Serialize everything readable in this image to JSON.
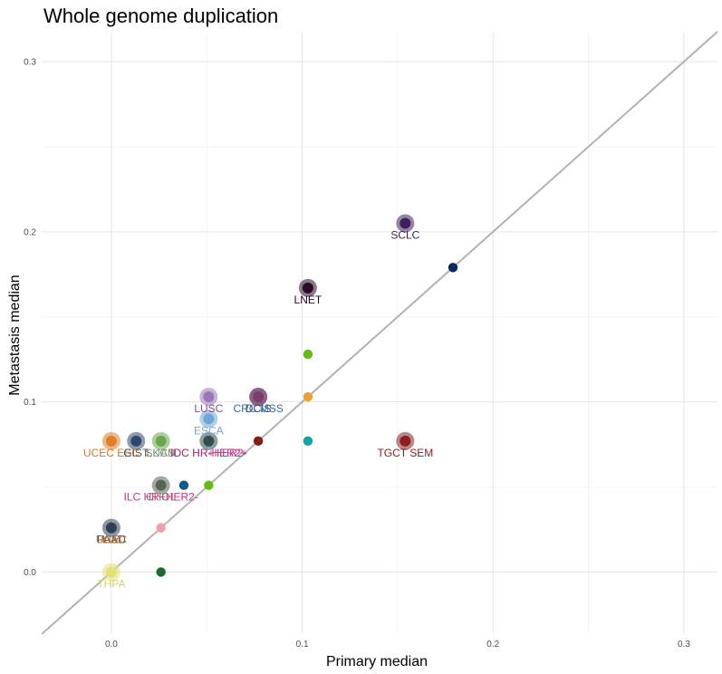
{
  "chart_data": {
    "type": "scatter",
    "title": "Whole genome duplication",
    "xlabel": "Primary median",
    "ylabel": "Metastasis median",
    "xlim": [
      -0.0365,
      0.3176
    ],
    "ylim": [
      -0.0365,
      0.3176
    ],
    "xticks": [
      0.0,
      0.1,
      0.2,
      0.3
    ],
    "yticks": [
      0.0,
      0.1,
      0.2,
      0.3
    ],
    "xtick_labels": [
      "0.0",
      "0.1",
      "0.2",
      "0.3"
    ],
    "ytick_labels": [
      "0.0",
      "0.1",
      "0.2",
      "0.3"
    ],
    "reference_line": "y = x",
    "grid": true,
    "legend": "none",
    "points": [
      {
        "x": 0.154,
        "y": 0.205,
        "color": "#3d1f5c",
        "highlight": true,
        "label": "SCLC",
        "label_color": "#3d1f5c"
      },
      {
        "x": 0.179,
        "y": 0.179,
        "color": "#0a2a5c",
        "highlight": false,
        "label": ""
      },
      {
        "x": 0.103,
        "y": 0.167,
        "color": "#2b0a26",
        "highlight": true,
        "label": "LNET",
        "label_color": "#2b0a26"
      },
      {
        "x": 0.103,
        "y": 0.128,
        "color": "#66bb11",
        "highlight": false,
        "label": ""
      },
      {
        "x": 0.103,
        "y": 0.103,
        "color": "#f0a030",
        "highlight": false,
        "label": ""
      },
      {
        "x": 0.077,
        "y": 0.103,
        "color": "#4a3561",
        "highlight": true,
        "label": "DCIS",
        "label_color": "#4a3561"
      },
      {
        "x": 0.077,
        "y": 0.103,
        "color": "#7f3c6b",
        "highlight": true,
        "label": "CRC MSS",
        "label_color": "#2c72a8"
      },
      {
        "x": 0.051,
        "y": 0.103,
        "color": "#9a77b8",
        "highlight": true,
        "label": "LUSC",
        "label_color": "#7a4f9a"
      },
      {
        "x": 0.051,
        "y": 0.09,
        "color": "#6fa8d8",
        "highlight": true,
        "label": "ESCA",
        "label_color": "#6fa8d8"
      },
      {
        "x": 0.0,
        "y": 0.077,
        "color": "#e07f27",
        "highlight": true,
        "label": "UCEC EEC",
        "label_color": "#d97525"
      },
      {
        "x": 0.013,
        "y": 0.077,
        "color": "#30486e",
        "highlight": true,
        "label": "GIST",
        "label_color": "#555555"
      },
      {
        "x": 0.026,
        "y": 0.077,
        "color": "#6aa84f",
        "highlight": true,
        "label": "LUAD",
        "label_color": "#6aa84f"
      },
      {
        "x": 0.026,
        "y": 0.077,
        "color": "#6aa84f",
        "highlight": false,
        "label": "SKCM",
        "label_color": "#888888"
      },
      {
        "x": 0.051,
        "y": 0.077,
        "color": "#2f4f4f",
        "highlight": true,
        "label": "IDC HR+HER2-",
        "label_color": "#d63384"
      },
      {
        "x": 0.051,
        "y": 0.077,
        "color": "#2f4f4f",
        "highlight": false,
        "label": "IDC HR-HER2+",
        "label_color": "#b5338a"
      },
      {
        "x": 0.077,
        "y": 0.077,
        "color": "#8b1a1a",
        "highlight": false,
        "label": ""
      },
      {
        "x": 0.103,
        "y": 0.077,
        "color": "#0da6a0",
        "highlight": false,
        "label": ""
      },
      {
        "x": 0.154,
        "y": 0.077,
        "color": "#8b2020",
        "highlight": true,
        "label": "TGCT SEM",
        "label_color": "#8b2020"
      },
      {
        "x": 0.026,
        "y": 0.051,
        "color": "#556655",
        "highlight": true,
        "label": "ILC HR+HER2-",
        "label_color": "#d63384"
      },
      {
        "x": 0.026,
        "y": 0.051,
        "color": "#556655",
        "highlight": false,
        "label": "CHOL",
        "label_color": "#777777"
      },
      {
        "x": 0.038,
        "y": 0.051,
        "color": "#0a5a8a",
        "highlight": false,
        "label": ""
      },
      {
        "x": 0.051,
        "y": 0.051,
        "color": "#66bb11",
        "highlight": false,
        "label": ""
      },
      {
        "x": 0.0,
        "y": 0.026,
        "color": "#2f3f5a",
        "highlight": true,
        "label": "PAAD",
        "label_color": "#555555"
      },
      {
        "x": 0.0,
        "y": 0.026,
        "color": "#2f3f5a",
        "highlight": false,
        "label": "UCEC",
        "label_color": "#b06a2a"
      },
      {
        "x": 0.0,
        "y": 0.026,
        "color": "#2f3f5a",
        "highlight": false,
        "label": "LIM",
        "label_color": "#b06a2a"
      },
      {
        "x": 0.026,
        "y": 0.026,
        "color": "#f0a0a0",
        "highlight": false,
        "label": ""
      },
      {
        "x": 0.0,
        "y": 0.0,
        "color": "#e4e07a",
        "highlight": true,
        "label": "THPA",
        "label_color": "#d8d26a"
      },
      {
        "x": 0.026,
        "y": 0.0,
        "color": "#1a6b2e",
        "highlight": false,
        "label": ""
      }
    ]
  }
}
